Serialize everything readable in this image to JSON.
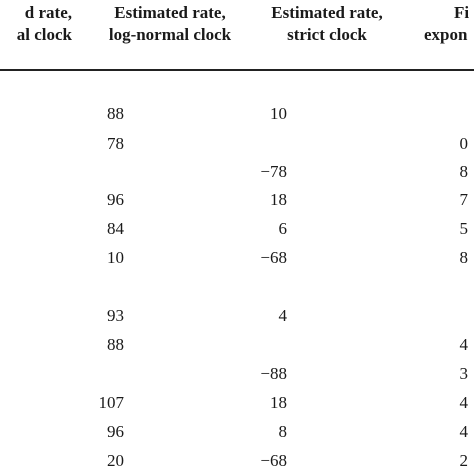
{
  "table": {
    "headers": [
      {
        "line1": "d rate,",
        "line2": "al clock"
      },
      {
        "line1": "Estimated rate,",
        "line2": "log-normal clock"
      },
      {
        "line1": "Estimated rate,",
        "line2": "strict clock"
      },
      {
        "line1": "Fi",
        "line2": "expon"
      }
    ],
    "rows": [
      {
        "c0": "",
        "c1": "10",
        "c2": "88"
      },
      {
        "c0": "0",
        "c1": "",
        "c2": "78"
      },
      {
        "c0": "8",
        "c1": "−78",
        "c2": ""
      },
      {
        "c0": "7",
        "c1": "18",
        "c2": "96"
      },
      {
        "c0": "5",
        "c1": "6",
        "c2": "84"
      },
      {
        "c0": "8",
        "c1": "−68",
        "c2": "10"
      },
      {
        "c0": "",
        "c1": "",
        "c2": ""
      },
      {
        "c0": "",
        "c1": "4",
        "c2": "93"
      },
      {
        "c0": "4",
        "c1": "",
        "c2": "88"
      },
      {
        "c0": "3",
        "c1": "−88",
        "c2": ""
      },
      {
        "c0": "4",
        "c1": "18",
        "c2": "107"
      },
      {
        "c0": "4",
        "c1": "8",
        "c2": "96"
      },
      {
        "c0": "2",
        "c1": "−68",
        "c2": "20"
      }
    ]
  }
}
